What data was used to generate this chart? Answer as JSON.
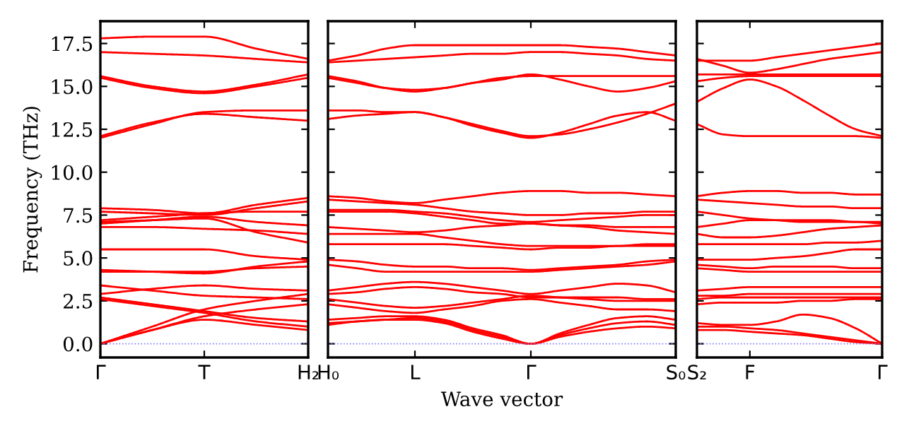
{
  "chart_data": [
    {
      "type": "line",
      "ylabel": "Frequency (THz)",
      "ylim": [
        -0.8,
        18.8
      ],
      "categories": [
        "Γ",
        null,
        "T",
        null,
        "H₂"
      ],
      "yticks": [
        {
          "value": 0,
          "label": "0.0"
        },
        2.5,
        {
          "value": 5,
          "label": "5.0"
        },
        7.5,
        {
          "value": 10,
          "label": "10.0"
        },
        12.5,
        {
          "value": 15,
          "label": "15.0"
        },
        17.5
      ],
      "ref_lines": [
        {
          "axis": "y",
          "value": 0,
          "color": "#8080ff",
          "line_style": "dotted"
        }
      ],
      "series": [
        {
          "color": "#ff0000",
          "values": [
            17.8,
            17.9,
            17.9,
            17.2,
            16.6
          ]
        },
        {
          "color": "#ff0000",
          "values": [
            17.0,
            16.9,
            16.8,
            16.6,
            16.4
          ]
        },
        {
          "color": "#ff0000",
          "values": [
            15.6,
            15.0,
            14.7,
            15.1,
            15.7
          ]
        },
        {
          "color": "#ff0000",
          "values": [
            15.5,
            14.9,
            14.6,
            15.0,
            15.5
          ]
        },
        {
          "color": "#ff0000",
          "values": [
            12.0,
            12.8,
            13.5,
            13.6,
            13.6
          ]
        },
        {
          "color": "#ff0000",
          "values": [
            12.1,
            12.9,
            13.4,
            13.2,
            13.0
          ]
        },
        {
          "color": "#ff0000",
          "values": [
            7.9,
            7.8,
            7.6,
            8.1,
            8.5
          ]
        },
        {
          "color": "#ff0000",
          "values": [
            7.7,
            7.6,
            7.5,
            7.9,
            8.3
          ]
        },
        {
          "color": "#ff0000",
          "values": [
            7.2,
            7.4,
            7.6,
            7.7,
            7.7
          ]
        },
        {
          "color": "#ff0000",
          "values": [
            7.0,
            7.2,
            7.4,
            7.1,
            6.9
          ]
        },
        {
          "color": "#ff0000",
          "values": [
            6.8,
            6.8,
            6.7,
            6.6,
            6.4
          ]
        },
        {
          "color": "#ff0000",
          "values": [
            7.1,
            7.2,
            7.3,
            6.5,
            5.9
          ]
        },
        {
          "color": "#ff0000",
          "values": [
            5.5,
            5.5,
            5.5,
            5.1,
            4.9
          ]
        },
        {
          "color": "#ff0000",
          "values": [
            4.2,
            4.2,
            4.2,
            4.4,
            4.5
          ]
        },
        {
          "color": "#ff0000",
          "values": [
            4.3,
            4.2,
            4.1,
            4.5,
            4.8
          ]
        },
        {
          "color": "#ff0000",
          "values": [
            3.4,
            3.1,
            2.8,
            2.7,
            2.6
          ]
        },
        {
          "color": "#ff0000",
          "values": [
            2.9,
            3.2,
            3.4,
            3.2,
            3.1
          ]
        },
        {
          "color": "#ff0000",
          "values": [
            2.7,
            2.3,
            1.9,
            1.5,
            1.3
          ]
        },
        {
          "color": "#ff0000",
          "values": [
            2.6,
            2.2,
            1.8,
            1.3,
            1.0
          ]
        },
        {
          "color": "#ff0000",
          "values": [
            0.0,
            1.0,
            2.0,
            2.5,
            2.9
          ]
        },
        {
          "color": "#ff0000",
          "values": [
            0.0,
            0.8,
            1.6,
            2.0,
            2.3
          ]
        },
        {
          "color": "#ff0000",
          "values": [
            0.0,
            0.8,
            1.4,
            1.1,
            0.8
          ]
        }
      ]
    },
    {
      "type": "line",
      "xlabel": "Wave vector",
      "tick_labels": "x",
      "ylim": [
        -0.8,
        18.8
      ],
      "categories": [
        "H₀",
        null,
        null,
        "L",
        null,
        null,
        null,
        "Γ",
        null,
        null,
        null,
        null,
        "S₀"
      ],
      "yticks": [
        {
          "value": 0,
          "label": null
        },
        {
          "value": 2.5,
          "label": null
        },
        {
          "value": 5,
          "label": null
        },
        {
          "value": 7.5,
          "label": null
        },
        {
          "value": 10,
          "label": null
        },
        {
          "value": 12.5,
          "label": null
        },
        {
          "value": 15,
          "label": null
        },
        {
          "value": 17.5,
          "label": null
        }
      ],
      "ref_lines": [
        {
          "axis": "y",
          "value": 0,
          "color": "#8080ff",
          "line_style": "dotted"
        }
      ],
      "series": [
        {
          "color": "#ff0000",
          "values": [
            16.5,
            16.8,
            17.2,
            17.4,
            17.4,
            17.4,
            17.4,
            17.4,
            17.4,
            17.3,
            17.2,
            17.0,
            16.8
          ]
        },
        {
          "color": "#ff0000",
          "values": [
            16.4,
            16.5,
            16.6,
            16.7,
            16.8,
            16.9,
            16.9,
            17.0,
            17.0,
            16.9,
            16.8,
            16.6,
            16.5
          ]
        },
        {
          "color": "#ff0000",
          "values": [
            15.6,
            15.3,
            14.9,
            14.7,
            14.9,
            15.2,
            15.5,
            15.6,
            15.6,
            15.6,
            15.6,
            15.6,
            15.6
          ]
        },
        {
          "color": "#ff0000",
          "values": [
            15.5,
            15.2,
            14.9,
            14.8,
            14.9,
            15.2,
            15.4,
            15.7,
            15.4,
            15.0,
            14.7,
            14.9,
            15.3
          ]
        },
        {
          "color": "#ff0000",
          "values": [
            13.6,
            13.6,
            13.5,
            13.5,
            13.2,
            12.7,
            12.3,
            12.0,
            12.3,
            12.8,
            13.3,
            13.5,
            13.0
          ]
        },
        {
          "color": "#ff0000",
          "values": [
            13.1,
            13.3,
            13.4,
            13.5,
            13.2,
            12.8,
            12.4,
            12.1,
            12.2,
            12.5,
            12.9,
            13.4,
            14.0
          ]
        },
        {
          "color": "#ff0000",
          "values": [
            8.6,
            8.5,
            8.3,
            8.2,
            8.4,
            8.6,
            8.8,
            8.9,
            8.9,
            8.8,
            8.8,
            8.7,
            8.6
          ]
        },
        {
          "color": "#ff0000",
          "values": [
            8.4,
            8.3,
            8.2,
            8.1,
            7.9,
            7.7,
            7.6,
            7.5,
            7.5,
            7.6,
            7.6,
            7.7,
            7.7
          ]
        },
        {
          "color": "#ff0000",
          "values": [
            7.8,
            7.8,
            7.8,
            7.7,
            7.6,
            7.4,
            7.2,
            7.1,
            7.2,
            7.3,
            7.4,
            7.5,
            7.5
          ]
        },
        {
          "color": "#ff0000",
          "values": [
            7.7,
            7.7,
            7.7,
            7.6,
            7.4,
            7.2,
            7.0,
            7.0,
            6.9,
            6.8,
            6.6,
            6.5,
            6.4
          ]
        },
        {
          "color": "#ff0000",
          "values": [
            6.8,
            6.7,
            6.6,
            6.5,
            6.6,
            6.8,
            6.9,
            7.0,
            6.9,
            6.9,
            6.8,
            6.8,
            6.8
          ]
        },
        {
          "color": "#ff0000",
          "values": [
            6.4,
            6.4,
            6.4,
            6.4,
            6.2,
            6.0,
            5.8,
            5.7,
            5.7,
            5.7,
            5.7,
            5.8,
            5.8
          ]
        },
        {
          "color": "#ff0000",
          "values": [
            5.8,
            5.8,
            5.8,
            5.8,
            5.8,
            5.7,
            5.6,
            5.5,
            5.6,
            5.6,
            5.7,
            5.7,
            5.7
          ]
        },
        {
          "color": "#ff0000",
          "values": [
            4.9,
            4.8,
            4.6,
            4.5,
            4.5,
            4.4,
            4.4,
            4.3,
            4.4,
            4.5,
            4.6,
            4.8,
            4.9
          ]
        },
        {
          "color": "#ff0000",
          "values": [
            4.6,
            4.4,
            4.2,
            4.2,
            4.2,
            4.2,
            4.2,
            4.2,
            4.3,
            4.4,
            4.5,
            4.6,
            4.8
          ]
        },
        {
          "color": "#ff0000",
          "values": [
            3.1,
            3.3,
            3.5,
            3.6,
            3.5,
            3.3,
            3.1,
            2.9,
            3.1,
            3.3,
            3.5,
            3.4,
            3.0
          ]
        },
        {
          "color": "#ff0000",
          "values": [
            2.9,
            3.0,
            3.2,
            3.3,
            3.2,
            3.0,
            2.9,
            2.7,
            2.7,
            2.7,
            2.7,
            2.6,
            2.6
          ]
        },
        {
          "color": "#ff0000",
          "values": [
            2.6,
            2.4,
            2.2,
            2.1,
            2.2,
            2.4,
            2.6,
            2.8,
            2.7,
            2.6,
            2.5,
            2.5,
            2.5
          ]
        },
        {
          "color": "#ff0000",
          "values": [
            2.3,
            2.1,
            1.9,
            1.8,
            2.0,
            2.2,
            2.5,
            2.6,
            2.4,
            2.2,
            2.0,
            2.0,
            1.9
          ]
        },
        {
          "color": "#ff0000",
          "values": [
            1.4,
            1.5,
            1.6,
            1.6,
            1.4,
            0.9,
            0.5,
            0.0,
            0.6,
            1.1,
            1.5,
            1.6,
            1.4
          ]
        },
        {
          "color": "#ff0000",
          "values": [
            1.1,
            1.3,
            1.4,
            1.5,
            1.3,
            0.8,
            0.4,
            0.0,
            0.5,
            0.9,
            1.2,
            1.3,
            1.1
          ]
        },
        {
          "color": "#ff0000",
          "values": [
            1.2,
            1.3,
            1.4,
            1.4,
            1.2,
            0.7,
            0.3,
            0.0,
            0.4,
            0.7,
            0.9,
            1.0,
            0.9
          ]
        }
      ]
    },
    {
      "type": "line",
      "tick_labels": "x",
      "ylim": [
        -0.8,
        18.8
      ],
      "categories": [
        "S₂",
        null,
        "F",
        null,
        null,
        null,
        null,
        "Γ"
      ],
      "yticks": [
        {
          "value": 0,
          "label": null
        },
        {
          "value": 2.5,
          "label": null
        },
        {
          "value": 5,
          "label": null
        },
        {
          "value": 7.5,
          "label": null
        },
        {
          "value": 10,
          "label": null
        },
        {
          "value": 12.5,
          "label": null
        },
        {
          "value": 15,
          "label": null
        },
        {
          "value": 17.5,
          "label": null
        }
      ],
      "ref_lines": [
        {
          "axis": "y",
          "value": 0,
          "color": "#8080ff",
          "line_style": "dotted"
        }
      ],
      "series": [
        {
          "color": "#ff0000",
          "values": [
            16.5,
            16.5,
            16.5,
            16.7,
            16.9,
            17.1,
            17.3,
            17.5
          ]
        },
        {
          "color": "#ff0000",
          "values": [
            16.6,
            16.2,
            15.8,
            16.0,
            16.3,
            16.6,
            16.8,
            17.0
          ]
        },
        {
          "color": "#ff0000",
          "values": [
            15.7,
            15.7,
            15.7,
            15.7,
            15.7,
            15.7,
            15.7,
            15.7
          ]
        },
        {
          "color": "#ff0000",
          "values": [
            15.3,
            15.5,
            15.6,
            15.6,
            15.6,
            15.6,
            15.6,
            15.6
          ]
        },
        {
          "color": "#ff0000",
          "values": [
            14.1,
            14.9,
            15.4,
            15.0,
            14.2,
            13.3,
            12.5,
            12.1
          ]
        },
        {
          "color": "#ff0000",
          "values": [
            12.8,
            12.2,
            12.1,
            12.1,
            12.1,
            12.1,
            12.1,
            12.0
          ]
        },
        {
          "color": "#ff0000",
          "values": [
            8.6,
            8.8,
            8.9,
            8.9,
            8.8,
            8.8,
            8.7,
            8.7
          ]
        },
        {
          "color": "#ff0000",
          "values": [
            8.4,
            8.3,
            8.2,
            8.1,
            8.0,
            8.0,
            7.9,
            7.9
          ]
        },
        {
          "color": "#ff0000",
          "values": [
            7.7,
            7.5,
            7.3,
            7.2,
            7.1,
            7.1,
            7.1,
            7.0
          ]
        },
        {
          "color": "#ff0000",
          "values": [
            6.8,
            7.0,
            7.2,
            7.2,
            7.2,
            7.2,
            7.1,
            7.1
          ]
        },
        {
          "color": "#ff0000",
          "values": [
            6.4,
            6.2,
            6.2,
            6.3,
            6.5,
            6.7,
            6.8,
            6.9
          ]
        },
        {
          "color": "#ff0000",
          "values": [
            5.8,
            5.8,
            5.8,
            5.8,
            5.8,
            5.9,
            5.9,
            6.0
          ]
        },
        {
          "color": "#ff0000",
          "values": [
            4.9,
            4.9,
            4.9,
            5.0,
            5.1,
            5.3,
            5.5,
            5.5
          ]
        },
        {
          "color": "#ff0000",
          "values": [
            4.6,
            4.5,
            4.4,
            4.5,
            4.5,
            4.5,
            4.4,
            4.4
          ]
        },
        {
          "color": "#ff0000",
          "values": [
            4.4,
            4.3,
            4.2,
            4.2,
            4.2,
            4.2,
            4.2,
            4.2
          ]
        },
        {
          "color": "#ff0000",
          "values": [
            3.1,
            3.2,
            3.3,
            3.3,
            3.3,
            3.3,
            3.3,
            3.3
          ]
        },
        {
          "color": "#ff0000",
          "values": [
            2.8,
            2.8,
            2.9,
            2.9,
            2.9,
            2.9,
            2.9,
            2.9
          ]
        },
        {
          "color": "#ff0000",
          "values": [
            2.6,
            2.7,
            2.7,
            2.7,
            2.7,
            2.7,
            2.7,
            2.7
          ]
        },
        {
          "color": "#ff0000",
          "values": [
            2.3,
            2.4,
            2.4,
            2.4,
            2.5,
            2.5,
            2.6,
            2.6
          ]
        },
        {
          "color": "#ff0000",
          "values": [
            1.2,
            1.1,
            1.1,
            1.3,
            1.7,
            1.5,
            0.9,
            0.0
          ]
        },
        {
          "color": "#ff0000",
          "values": [
            1.0,
            1.0,
            0.9,
            0.8,
            0.6,
            0.4,
            0.2,
            0.0
          ]
        },
        {
          "color": "#ff0000",
          "values": [
            0.8,
            0.8,
            0.7,
            0.6,
            0.5,
            0.3,
            0.1,
            0.0
          ]
        }
      ]
    }
  ]
}
